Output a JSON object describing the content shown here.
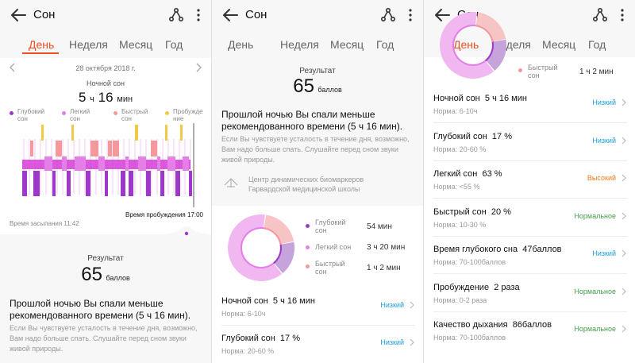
{
  "app": {
    "title": "Сон",
    "tabs": [
      "День",
      "Неделя",
      "Месяц",
      "Год"
    ]
  },
  "colors": {
    "accent": "#f04e23",
    "deep": "#9e38c8",
    "light": "#e37fe6",
    "rem": "#f4989b",
    "awake": "#f3c845",
    "status_low": "#1aa0d8",
    "status_high": "#f27a1a",
    "status_normal": "#43a047"
  },
  "day": {
    "date": "28 октября 2018 г.",
    "night_label": "Ночной сон",
    "night_hours": "5",
    "h": "ч",
    "night_minutes": "16",
    "min": "мин",
    "legend": [
      "Глубокий сон",
      "Легкий сон",
      "Быстрый сон",
      "Пробужде ние"
    ],
    "fall_asleep": "Время засыпания 11:42",
    "wake_up": "Время пробуждения 17:00"
  },
  "result": {
    "label": "Результат",
    "score": "65",
    "unit": "баллов",
    "advice_title": "Прошлой ночью Вы спали меньше рекомендованного времени (5 ч 16 мин).",
    "advice_text": "Если Вы чувствуете усталость в течение дня, возможно, Вам надо больше спать. Слушайте перед сном звуки живой природы.",
    "source": "Центр динамических биомаркеров Гарвардской медицинской школы"
  },
  "donut": {
    "items": [
      {
        "label": "Глубокий сон",
        "value": "54 мин",
        "pct": 17
      },
      {
        "label": "Легкий сон",
        "value": "3 ч 20 мин",
        "pct": 63
      },
      {
        "label": "Быстрый сон",
        "value": "1 ч 2 мин",
        "pct": 20
      }
    ]
  },
  "metrics": [
    {
      "title": "Ночной сон",
      "value": "5 ч 16 мин",
      "norm": "Норма: 6-10ч",
      "status": "Низкий",
      "kind": "low"
    },
    {
      "title": "Глубокий сон",
      "value": "17 %",
      "norm": "Норма: 20-60 %",
      "status": "Низкий",
      "kind": "low"
    },
    {
      "title": "Легкий сон",
      "value": "63 %",
      "norm": "Норма: <55 %",
      "status": "Высокий",
      "kind": "high"
    },
    {
      "title": "Быстрый сон",
      "value": "20 %",
      "norm": "Норма: 10-30 %",
      "status": "Нормальное",
      "kind": "normal"
    },
    {
      "title": "Время глубокого сна",
      "value": "47баллов",
      "norm": "Норма: 70-100баллов",
      "status": "Низкий",
      "kind": "low"
    },
    {
      "title": "Пробуждение",
      "value": "2 раза",
      "norm": "Норма: 0-2 раза",
      "status": "Нормальное",
      "kind": "normal"
    },
    {
      "title": "Качество дыхания",
      "value": "86баллов",
      "norm": "Норма: 70-100баллов",
      "status": "Нормальное",
      "kind": "normal"
    }
  ]
}
